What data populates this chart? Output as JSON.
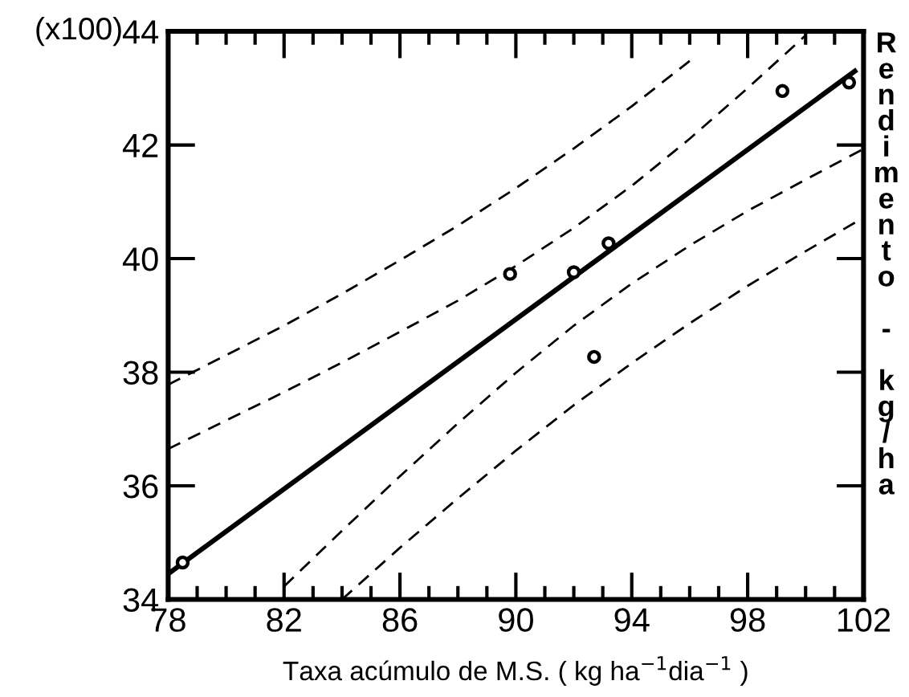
{
  "chart_data": {
    "type": "scatter",
    "xlabel": "Taxa acúmulo de M.S. ( kg ha$^{−1}$dia$^{−1}$ )",
    "ylabel": "Rendimento - kg/ha",
    "annotations": [
      "(x100)"
    ],
    "xlim": [
      78,
      102
    ],
    "ylim": [
      34,
      44
    ],
    "xticks": [
      78,
      {
        "value": 79,
        "label": null
      },
      {
        "value": 80,
        "label": null
      },
      {
        "value": 81,
        "label": null
      },
      82,
      {
        "value": 83,
        "label": null
      },
      {
        "value": 84,
        "label": null
      },
      {
        "value": 85,
        "label": null
      },
      86,
      {
        "value": 87,
        "label": null
      },
      {
        "value": 88,
        "label": null
      },
      {
        "value": 89,
        "label": null
      },
      90,
      {
        "value": 91,
        "label": null
      },
      {
        "value": 92,
        "label": null
      },
      {
        "value": 93,
        "label": null
      },
      94,
      {
        "value": 95,
        "label": null
      },
      {
        "value": 96,
        "label": null
      },
      {
        "value": 97,
        "label": null
      },
      98,
      {
        "value": 99,
        "label": null
      },
      {
        "value": 100,
        "label": null
      },
      {
        "value": 101,
        "label": null
      },
      102
    ],
    "yticks": [
      34,
      36,
      38,
      40,
      42,
      44
    ],
    "grid": false,
    "legend": false,
    "series": [
      {
        "marker": "circle",
        "color": "#000000",
        "x": [
          78.5,
          89.8,
          92.0,
          93.2,
          92.7,
          99.2,
          101.5
        ],
        "values": [
          34.65,
          39.73,
          39.76,
          40.27,
          38.27,
          42.95,
          43.1
        ]
      },
      {
        "type": "line",
        "line_style": "solid",
        "marker": "none",
        "color": "#000000",
        "x": [
          78,
          101.7
        ],
        "values": [
          34.45,
          43.3
        ]
      },
      {
        "type": "line",
        "line_style": "dashed",
        "marker": "none",
        "color": "#000000",
        "x": [
          78,
          80,
          82,
          84,
          86,
          88,
          90,
          92,
          94,
          96,
          98,
          100
        ],
        "values": [
          36.65,
          37.15,
          37.65,
          38.17,
          38.71,
          39.26,
          39.87,
          40.54,
          41.28,
          42.11,
          43.0,
          43.93
        ]
      },
      {
        "type": "line",
        "line_style": "dashed",
        "marker": "none",
        "color": "#000000",
        "x": [
          82,
          84,
          86,
          88,
          90,
          92,
          94,
          96,
          98,
          100,
          102
        ],
        "values": [
          34.23,
          35.21,
          36.17,
          37.1,
          37.99,
          38.82,
          39.56,
          40.23,
          40.84,
          41.39,
          41.93
        ]
      },
      {
        "type": "line",
        "line_style": "dashed",
        "marker": "none",
        "color": "#000000",
        "x": [
          78,
          80,
          82,
          84,
          86,
          88,
          90,
          92,
          94,
          96
        ],
        "values": [
          37.78,
          38.3,
          38.82,
          39.38,
          39.97,
          40.58,
          41.24,
          41.94,
          42.68,
          43.48
        ]
      },
      {
        "type": "line",
        "line_style": "dashed",
        "marker": "none",
        "color": "#000000",
        "x": [
          84,
          86,
          88,
          90,
          92,
          94,
          96,
          98,
          100,
          102
        ],
        "values": [
          34.0,
          34.91,
          35.78,
          36.62,
          37.42,
          38.16,
          38.86,
          39.52,
          40.13,
          40.72
        ]
      }
    ]
  }
}
